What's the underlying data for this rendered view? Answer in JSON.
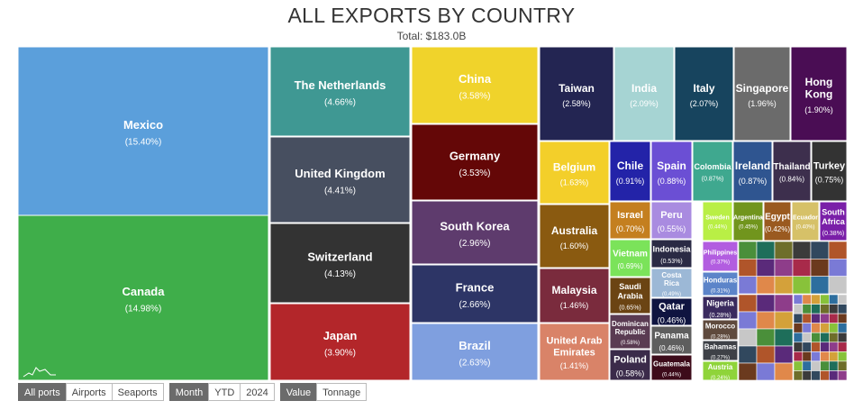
{
  "header": {
    "title": "ALL EXPORTS BY COUNTRY",
    "subtitle": "Total: $183.0B"
  },
  "controls": {
    "port": {
      "options": [
        "All ports",
        "Airports",
        "Seaports"
      ],
      "selected": "All ports"
    },
    "period": {
      "options": [
        "Month",
        "YTD",
        "2024"
      ],
      "selected": "Month"
    },
    "measure": {
      "options": [
        "Value",
        "Tonnage"
      ],
      "selected": "Value"
    }
  },
  "chart_data": {
    "type": "treemap",
    "title": "ALL EXPORTS BY COUNTRY",
    "subtitle": "Total: $183.0B",
    "unit": "% of total",
    "nodes": [
      {
        "name": "Mexico",
        "value": 15.4,
        "color": "#5b9fdb"
      },
      {
        "name": "Canada",
        "value": 14.98,
        "color": "#3fae4a"
      },
      {
        "name": "The Netherlands",
        "value": 4.66,
        "color": "#3f9893"
      },
      {
        "name": "United Kingdom",
        "value": 4.41,
        "color": "#474f60"
      },
      {
        "name": "Switzerland",
        "value": 4.13,
        "color": "#333333"
      },
      {
        "name": "Japan",
        "value": 3.9,
        "color": "#b3262a"
      },
      {
        "name": "China",
        "value": 3.58,
        "color": "#f0d32b"
      },
      {
        "name": "Germany",
        "value": 3.53,
        "color": "#640707"
      },
      {
        "name": "South Korea",
        "value": 2.96,
        "color": "#5e3b6d"
      },
      {
        "name": "France",
        "value": 2.66,
        "color": "#2d3566"
      },
      {
        "name": "Brazil",
        "value": 2.63,
        "color": "#7f9fdf"
      },
      {
        "name": "Taiwan",
        "value": 2.58,
        "color": "#232552"
      },
      {
        "name": "India",
        "value": 2.09,
        "color": "#a6d4d3"
      },
      {
        "name": "Italy",
        "value": 2.07,
        "color": "#17445e"
      },
      {
        "name": "Singapore",
        "value": 1.96,
        "color": "#6b6b6b"
      },
      {
        "name": "Hong Kong",
        "value": 1.9,
        "color": "#4a0d54"
      },
      {
        "name": "Belgium",
        "value": 1.63,
        "color": "#f3cf2a"
      },
      {
        "name": "Australia",
        "value": 1.6,
        "color": "#8a5a10"
      },
      {
        "name": "Malaysia",
        "value": 1.46,
        "color": "#7a2b3d"
      },
      {
        "name": "United Arab Emirates",
        "value": 1.41,
        "color": "#d98368"
      },
      {
        "name": "Chile",
        "value": 0.91,
        "color": "#2323a8"
      },
      {
        "name": "Spain",
        "value": 0.88,
        "color": "#6b4fd4"
      },
      {
        "name": "Colombia",
        "value": 0.87,
        "color": "#3fa88f"
      },
      {
        "name": "Ireland",
        "value": 0.87,
        "color": "#2f5590"
      },
      {
        "name": "Thailand",
        "value": 0.84,
        "color": "#3d2f4d"
      },
      {
        "name": "Turkey",
        "value": 0.75,
        "color": "#333333"
      },
      {
        "name": "Israel",
        "value": 0.7,
        "color": "#c47f1f"
      },
      {
        "name": "Peru",
        "value": 0.55,
        "color": "#a98be0"
      },
      {
        "name": "Vietnam",
        "value": 0.69,
        "color": "#7be35a"
      },
      {
        "name": "Indonesia",
        "value": 0.53,
        "color": "#2a2a44"
      },
      {
        "name": "Costa Rica",
        "value": 0.49,
        "color": "#9cb8d6"
      },
      {
        "name": "Saudi Arabia",
        "value": 0.65,
        "color": "#6b4413"
      },
      {
        "name": "Qatar",
        "value": 0.46,
        "color": "#0f1440"
      },
      {
        "name": "Dominican Republic",
        "value": 0.58,
        "color": "#5a3b52"
      },
      {
        "name": "Panama",
        "value": 0.46,
        "color": "#5e5e5e"
      },
      {
        "name": "Poland",
        "value": 0.58,
        "color": "#3b2b4a"
      },
      {
        "name": "Guatemala",
        "value": 0.44,
        "color": "#3d0b1a"
      },
      {
        "name": "Sweden",
        "value": 0.44,
        "color": "#b9ef45"
      },
      {
        "name": "Argentina",
        "value": 0.45,
        "color": "#71951d"
      },
      {
        "name": "Egypt",
        "value": 0.42,
        "color": "#9a5a20"
      },
      {
        "name": "Ecuador",
        "value": 0.4,
        "color": "#d6c168"
      },
      {
        "name": "South Africa",
        "value": 0.38,
        "color": "#7a1fa8"
      },
      {
        "name": "Philippines",
        "value": 0.37,
        "color": "#b25de0"
      },
      {
        "name": "Honduras",
        "value": 0.31,
        "color": "#5c84c9"
      },
      {
        "name": "Nigeria",
        "value": 0.28,
        "color": "#3a2a5e"
      },
      {
        "name": "Morocco",
        "value": 0.28,
        "color": "#5f4a3d"
      },
      {
        "name": "Bahamas",
        "value": 0.27,
        "color": "#3e4147"
      },
      {
        "name": "Austria",
        "value": 0.24,
        "color": "#8fd43a"
      }
    ],
    "unlabeled_small_tiles": "remaining countries (values not legible)"
  }
}
